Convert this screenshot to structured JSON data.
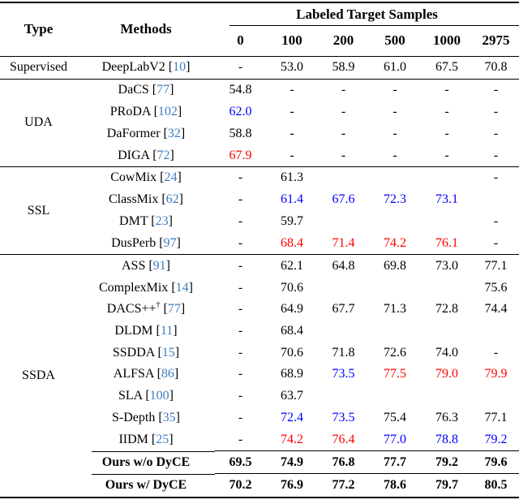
{
  "page": {
    "background": "#ffffff"
  },
  "table": {
    "header": {
      "type_label": "Type",
      "methods_label": "Methods",
      "group_label": "Labeled Target Samples",
      "sample_columns": [
        "0",
        "100",
        "200",
        "500",
        "1000",
        "2975"
      ]
    },
    "colors": {
      "citation_link": "#3e7dbe",
      "value_blue": "#0000ff",
      "value_red": "#ff0000",
      "value_black": "#000000",
      "rule_color": "#000000"
    },
    "sections": [
      {
        "type": "Supervised",
        "rows": [
          {
            "method": "DeepLabV2",
            "citation": "10",
            "cells": [
              {
                "text": "-",
                "color": "black"
              },
              {
                "text": "53.0",
                "color": "black"
              },
              {
                "text": "58.9",
                "color": "black"
              },
              {
                "text": "61.0",
                "color": "black"
              },
              {
                "text": "67.5",
                "color": "black"
              },
              {
                "text": "70.8",
                "color": "black"
              }
            ]
          }
        ]
      },
      {
        "type": "UDA",
        "rows": [
          {
            "method": "DaCS",
            "citation": "77",
            "cells": [
              {
                "text": "54.8",
                "color": "black"
              },
              {
                "text": "-",
                "color": "black"
              },
              {
                "text": "-",
                "color": "black"
              },
              {
                "text": "-",
                "color": "black"
              },
              {
                "text": "-",
                "color": "black"
              },
              {
                "text": "-",
                "color": "black"
              }
            ]
          },
          {
            "method": "PRoDA",
            "citation": "102",
            "cells": [
              {
                "text": "62.0",
                "color": "blue"
              },
              {
                "text": "-",
                "color": "black"
              },
              {
                "text": "-",
                "color": "black"
              },
              {
                "text": "-",
                "color": "black"
              },
              {
                "text": "-",
                "color": "black"
              },
              {
                "text": "-",
                "color": "black"
              }
            ]
          },
          {
            "method": "DaFormer",
            "citation": "32",
            "cells": [
              {
                "text": "58.8",
                "color": "black"
              },
              {
                "text": "-",
                "color": "black"
              },
              {
                "text": "-",
                "color": "black"
              },
              {
                "text": "-",
                "color": "black"
              },
              {
                "text": "-",
                "color": "black"
              },
              {
                "text": "-",
                "color": "black"
              }
            ]
          },
          {
            "method": "DIGA",
            "citation": "72",
            "cells": [
              {
                "text": "67.9",
                "color": "red"
              },
              {
                "text": "-",
                "color": "black"
              },
              {
                "text": "-",
                "color": "black"
              },
              {
                "text": "-",
                "color": "black"
              },
              {
                "text": "-",
                "color": "black"
              },
              {
                "text": "-",
                "color": "black"
              }
            ]
          }
        ]
      },
      {
        "type": "SSL",
        "rows": [
          {
            "method": "CowMix",
            "citation": "24",
            "cells": [
              {
                "text": "-",
                "color": "black"
              },
              {
                "text": "61.3",
                "color": "black"
              },
              {
                "text": "",
                "color": "black"
              },
              {
                "text": "",
                "color": "black"
              },
              {
                "text": "",
                "color": "black"
              },
              {
                "text": "-",
                "color": "black"
              }
            ]
          },
          {
            "method": "ClassMix",
            "citation": "62",
            "cells": [
              {
                "text": "-",
                "color": "black"
              },
              {
                "text": "61.4",
                "color": "blue"
              },
              {
                "text": "67.6",
                "color": "blue"
              },
              {
                "text": "72.3",
                "color": "blue"
              },
              {
                "text": "73.1",
                "color": "blue"
              },
              {
                "text": "",
                "color": "black"
              }
            ]
          },
          {
            "method": "DMT",
            "citation": "23",
            "cells": [
              {
                "text": "-",
                "color": "black"
              },
              {
                "text": "59.7",
                "color": "black"
              },
              {
                "text": "",
                "color": "black"
              },
              {
                "text": "",
                "color": "black"
              },
              {
                "text": "",
                "color": "black"
              },
              {
                "text": "-",
                "color": "black"
              }
            ]
          },
          {
            "method": "DusPerb",
            "citation": "97",
            "cells": [
              {
                "text": "-",
                "color": "black"
              },
              {
                "text": "68.4",
                "color": "red"
              },
              {
                "text": "71.4",
                "color": "red"
              },
              {
                "text": "74.2",
                "color": "red"
              },
              {
                "text": "76.1",
                "color": "red"
              },
              {
                "text": "-",
                "color": "black"
              }
            ]
          }
        ]
      },
      {
        "type": "SSDA",
        "rows": [
          {
            "method": "ASS",
            "citation": "91",
            "cells": [
              {
                "text": "-",
                "color": "black"
              },
              {
                "text": "62.1",
                "color": "black"
              },
              {
                "text": "64.8",
                "color": "black"
              },
              {
                "text": "69.8",
                "color": "black"
              },
              {
                "text": "73.0",
                "color": "black"
              },
              {
                "text": "77.1",
                "color": "black"
              }
            ]
          },
          {
            "method": "ComplexMix",
            "citation": "14",
            "cells": [
              {
                "text": "-",
                "color": "black"
              },
              {
                "text": "70.6",
                "color": "black"
              },
              {
                "text": "",
                "color": "black"
              },
              {
                "text": "",
                "color": "black"
              },
              {
                "text": "",
                "color": "black"
              },
              {
                "text": "75.6",
                "color": "black"
              }
            ]
          },
          {
            "method": "DACS++",
            "sup": "†",
            "citation": "77",
            "cells": [
              {
                "text": "-",
                "color": "black"
              },
              {
                "text": "64.9",
                "color": "black"
              },
              {
                "text": "67.7",
                "color": "black"
              },
              {
                "text": "71.3",
                "color": "black"
              },
              {
                "text": "72.8",
                "color": "black"
              },
              {
                "text": "74.4",
                "color": "black"
              }
            ]
          },
          {
            "method": "DLDM",
            "citation": "11",
            "cells": [
              {
                "text": "-",
                "color": "black"
              },
              {
                "text": "68.4",
                "color": "black"
              },
              {
                "text": "",
                "color": "black"
              },
              {
                "text": "",
                "color": "black"
              },
              {
                "text": "",
                "color": "black"
              },
              {
                "text": "",
                "color": "black"
              }
            ]
          },
          {
            "method": "SSDDA",
            "citation": "15",
            "cells": [
              {
                "text": "-",
                "color": "black"
              },
              {
                "text": "70.6",
                "color": "black"
              },
              {
                "text": "71.8",
                "color": "black"
              },
              {
                "text": "72.6",
                "color": "black"
              },
              {
                "text": "74.0",
                "color": "black"
              },
              {
                "text": "-",
                "color": "black"
              }
            ]
          },
          {
            "method": "ALFSA",
            "citation": "86",
            "cells": [
              {
                "text": "-",
                "color": "black"
              },
              {
                "text": "68.9",
                "color": "black"
              },
              {
                "text": "73.5",
                "color": "blue"
              },
              {
                "text": "77.5",
                "color": "red"
              },
              {
                "text": "79.0",
                "color": "red"
              },
              {
                "text": "79.9",
                "color": "red"
              }
            ]
          },
          {
            "method": "SLA",
            "citation": "100",
            "cells": [
              {
                "text": "-",
                "color": "black"
              },
              {
                "text": "63.7",
                "color": "black"
              },
              {
                "text": "",
                "color": "black"
              },
              {
                "text": "",
                "color": "black"
              },
              {
                "text": "",
                "color": "black"
              },
              {
                "text": "",
                "color": "black"
              }
            ]
          },
          {
            "method": "S-Depth",
            "citation": "35",
            "cells": [
              {
                "text": "-",
                "color": "black"
              },
              {
                "text": "72.4",
                "color": "blue"
              },
              {
                "text": "73.5",
                "color": "blue"
              },
              {
                "text": "75.4",
                "color": "black"
              },
              {
                "text": "76.3",
                "color": "black"
              },
              {
                "text": "77.1",
                "color": "black"
              }
            ]
          },
          {
            "method": "IIDM",
            "citation": "25",
            "cells": [
              {
                "text": "-",
                "color": "black"
              },
              {
                "text": "74.2",
                "color": "red"
              },
              {
                "text": "76.4",
                "color": "red"
              },
              {
                "text": "77.0",
                "color": "blue"
              },
              {
                "text": "78.8",
                "color": "blue"
              },
              {
                "text": "79.2",
                "color": "blue"
              }
            ]
          },
          {
            "method": "Ours w/o DyCE",
            "citation": "",
            "bold": true,
            "rule_above": true,
            "cells": [
              {
                "text": "69.5",
                "color": "black"
              },
              {
                "text": "74.9",
                "color": "black"
              },
              {
                "text": "76.8",
                "color": "black"
              },
              {
                "text": "77.7",
                "color": "black"
              },
              {
                "text": "79.2",
                "color": "black"
              },
              {
                "text": "79.6",
                "color": "black"
              }
            ]
          },
          {
            "method": "Ours w/ DyCE",
            "citation": "",
            "bold": true,
            "rule_above": true,
            "cells": [
              {
                "text": "70.2",
                "color": "black"
              },
              {
                "text": "76.9",
                "color": "black"
              },
              {
                "text": "77.2",
                "color": "black"
              },
              {
                "text": "78.6",
                "color": "black"
              },
              {
                "text": "79.7",
                "color": "black"
              },
              {
                "text": "80.5",
                "color": "black"
              }
            ]
          }
        ]
      }
    ]
  }
}
